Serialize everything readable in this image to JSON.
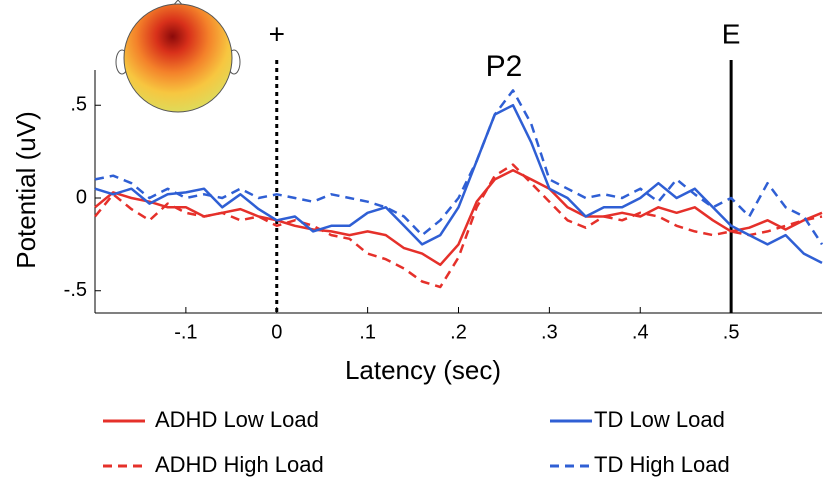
{
  "chart_data": {
    "type": "line",
    "xlabel": "Latency (sec)",
    "ylabel": "Potential (uV)",
    "x": [
      -0.2,
      -0.18,
      -0.16,
      -0.14,
      -0.12,
      -0.1,
      -0.08,
      -0.06,
      -0.04,
      -0.02,
      0,
      0.02,
      0.04,
      0.06,
      0.08,
      0.1,
      0.12,
      0.14,
      0.16,
      0.18,
      0.2,
      0.22,
      0.24,
      0.26,
      0.28,
      0.3,
      0.32,
      0.34,
      0.36,
      0.38,
      0.4,
      0.42,
      0.44,
      0.46,
      0.48,
      0.5,
      0.52,
      0.54,
      0.56,
      0.58,
      0.6
    ],
    "series": [
      {
        "name": "ADHD Low Load",
        "color": "#e5302a",
        "dashed": false,
        "values": [
          -0.05,
          0.03,
          0,
          -0.02,
          -0.05,
          -0.05,
          -0.1,
          -0.08,
          -0.06,
          -0.1,
          -0.12,
          -0.15,
          -0.17,
          -0.18,
          -0.2,
          -0.18,
          -0.2,
          -0.27,
          -0.3,
          -0.36,
          -0.25,
          -0.02,
          0.1,
          0.15,
          0.1,
          0.05,
          -0.05,
          -0.1,
          -0.1,
          -0.08,
          -0.1,
          -0.05,
          -0.08,
          -0.05,
          -0.12,
          -0.18,
          -0.16,
          -0.12,
          -0.17,
          -0.12,
          -0.08
        ]
      },
      {
        "name": "ADHD High Load",
        "color": "#e5302a",
        "dashed": true,
        "values": [
          -0.1,
          0.02,
          -0.06,
          -0.12,
          -0.03,
          -0.08,
          -0.1,
          -0.08,
          -0.12,
          -0.1,
          -0.15,
          -0.12,
          -0.15,
          -0.2,
          -0.22,
          -0.3,
          -0.33,
          -0.38,
          -0.45,
          -0.48,
          -0.32,
          -0.05,
          0.12,
          0.18,
          0.08,
          -0.02,
          -0.12,
          -0.16,
          -0.1,
          -0.12,
          -0.08,
          -0.1,
          -0.15,
          -0.18,
          -0.2,
          -0.18,
          -0.2,
          -0.18,
          -0.15,
          -0.12,
          -0.1
        ]
      },
      {
        "name": "TD Low Load",
        "color": "#2f5fd4",
        "dashed": false,
        "values": [
          0.05,
          0.02,
          0.05,
          -0.03,
          0.02,
          0.03,
          0.05,
          -0.05,
          0.02,
          -0.06,
          -0.12,
          -0.1,
          -0.18,
          -0.15,
          -0.15,
          -0.08,
          -0.05,
          -0.15,
          -0.25,
          -0.2,
          -0.05,
          0.2,
          0.45,
          0.5,
          0.3,
          0.05,
          0,
          -0.1,
          -0.05,
          -0.05,
          0,
          0.08,
          0,
          0.05,
          -0.05,
          -0.15,
          -0.2,
          -0.25,
          -0.2,
          -0.3,
          -0.35
        ]
      },
      {
        "name": "TD High Load",
        "color": "#2f5fd4",
        "dashed": true,
        "values": [
          0.1,
          0.12,
          0.08,
          0,
          0.05,
          0,
          0.02,
          0,
          0.05,
          0,
          0.02,
          0,
          -0.02,
          0.02,
          0,
          -0.02,
          -0.05,
          -0.1,
          -0.2,
          -0.12,
          0,
          0.2,
          0.45,
          0.58,
          0.4,
          0.1,
          0.05,
          0,
          0.02,
          0,
          0.05,
          -0.02,
          0.1,
          0.02,
          -0.05,
          0,
          -0.1,
          0.08,
          -0.05,
          -0.1,
          -0.25
        ]
      }
    ],
    "xlim": [
      -0.2,
      0.6
    ],
    "ylim": [
      -0.62,
      0.69
    ],
    "xticks": [
      {
        "value": -0.1,
        "label": "-.1"
      },
      0,
      {
        "value": 0.1,
        "label": ".1"
      },
      {
        "value": 0.2,
        "label": ".2"
      },
      {
        "value": 0.3,
        "label": ".3"
      },
      {
        "value": 0.4,
        "label": ".4"
      },
      {
        "value": 0.5,
        "label": ".5"
      }
    ],
    "yticks": [
      {
        "value": -0.5,
        "label": "-.5"
      },
      0,
      {
        "value": 0.5,
        "label": ".5"
      }
    ],
    "vlines": [
      {
        "x": 0,
        "label": "+",
        "dashed": true
      },
      {
        "x": 0.5,
        "label": "E",
        "dashed": false
      }
    ],
    "annotations": [
      {
        "text": "P2",
        "x": 0.25,
        "y": 0.7
      }
    ]
  }
}
